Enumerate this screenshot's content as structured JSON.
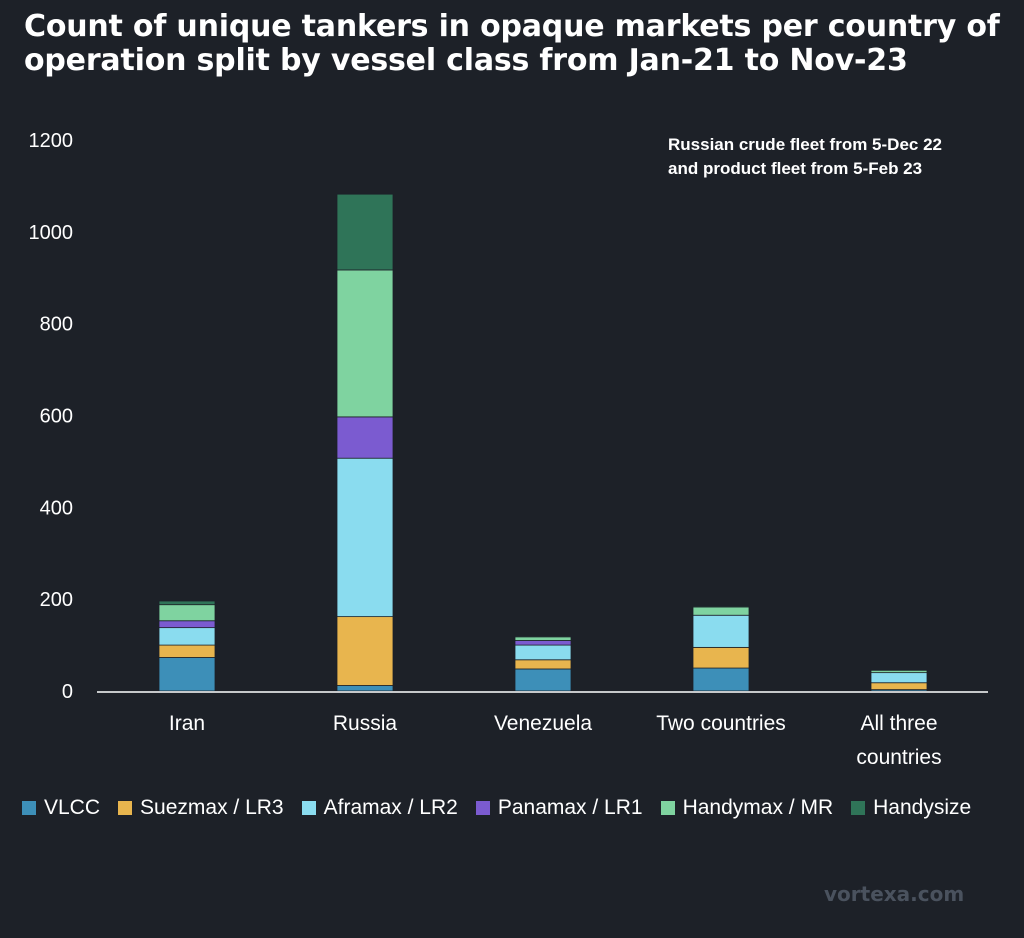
{
  "chart_data": {
    "type": "bar",
    "stacked": true,
    "title": "Count of unique tankers in opaque markets per country of operation split by vessel class from Jan-21 to Nov-23",
    "categories": [
      "Iran",
      "Russia",
      "Venezuela",
      "Two countries",
      "All three countries"
    ],
    "category_lines": [
      [
        "Iran"
      ],
      [
        "Russia"
      ],
      [
        "Venezuela"
      ],
      [
        "Two countries"
      ],
      [
        "All three",
        "countries"
      ]
    ],
    "ylim": [
      0,
      1200
    ],
    "yticks": [
      0,
      200,
      400,
      600,
      800,
      1000,
      1200
    ],
    "grid": false,
    "legend_position": "bottom",
    "annotation": [
      "Russian crude fleet from 5-Dec 22",
      "and product fleet from 5-Feb 23"
    ],
    "series": [
      {
        "name": "VLCC",
        "color": "#3d8fb8",
        "values": [
          73,
          12,
          48,
          50,
          3
        ]
      },
      {
        "name": "Suezmax / LR3",
        "color": "#e8b54e",
        "values": [
          27,
          150,
          20,
          45,
          15
        ]
      },
      {
        "name": "Aframax / LR2",
        "color": "#8adcef",
        "values": [
          38,
          345,
          32,
          70,
          22
        ]
      },
      {
        "name": "Panamax / LR1",
        "color": "#7b5bd0",
        "values": [
          15,
          90,
          10,
          0,
          0
        ]
      },
      {
        "name": "Handymax / MR",
        "color": "#7fd3a0",
        "values": [
          35,
          320,
          8,
          18,
          5
        ]
      },
      {
        "name": "Handysize",
        "color": "#2f7458",
        "values": [
          8,
          165,
          2,
          2,
          0
        ]
      }
    ]
  },
  "watermark": "vortexa.com"
}
